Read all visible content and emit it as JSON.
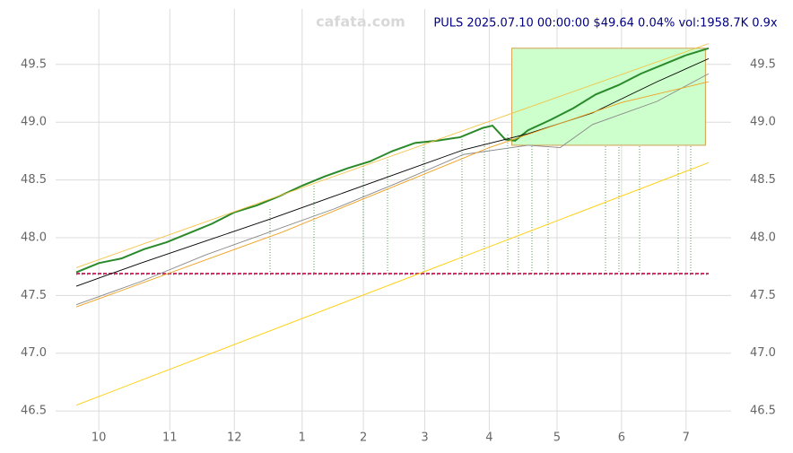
{
  "chart_data": {
    "type": "line",
    "title": "PULS 2025.07.10 00:00:00 $49.64 0.04% vol:1958.7K 0.9x",
    "watermark": "cafata.com",
    "xlim": [
      0,
      196
    ],
    "xticks": [
      {
        "value": 7,
        "label": "10"
      },
      {
        "value": 29,
        "label": "11"
      },
      {
        "value": 49,
        "label": "12"
      },
      {
        "value": 70,
        "label": "1"
      },
      {
        "value": 89,
        "label": "2"
      },
      {
        "value": 108,
        "label": "3"
      },
      {
        "value": 128,
        "label": "4"
      },
      {
        "value": 149,
        "label": "5"
      },
      {
        "value": 169,
        "label": "6"
      },
      {
        "value": 189,
        "label": "7"
      }
    ],
    "ylim": [
      46.33,
      49.98
    ],
    "yticks": [
      {
        "value": 46.5,
        "label": "46.5"
      },
      {
        "value": 47,
        "label": "47.0"
      },
      {
        "value": 47.5,
        "label": "47.5"
      },
      {
        "value": 48,
        "label": "48.0"
      },
      {
        "value": 48.5,
        "label": "48.5"
      },
      {
        "value": 49,
        "label": "49.0"
      },
      {
        "value": 49.5,
        "label": "49.5"
      }
    ],
    "grid": true,
    "box": {
      "x": [
        135,
        195
      ],
      "y": [
        48.8,
        49.64
      ],
      "color": "#ccffcc",
      "edge": "#d4a050"
    },
    "series": [
      {
        "color": "#2a8a2a",
        "x": [
          0,
          7,
          14,
          21,
          28,
          35,
          42,
          49,
          56,
          63,
          70,
          77,
          84,
          91,
          98,
          105,
          112,
          119,
          126,
          129,
          133,
          136,
          140,
          147,
          154,
          161,
          168,
          175,
          182,
          189,
          196
        ],
        "values": [
          47.7,
          47.78,
          47.82,
          47.9,
          47.96,
          48.04,
          48.12,
          48.22,
          48.28,
          48.36,
          48.45,
          48.53,
          48.6,
          48.66,
          48.75,
          48.82,
          48.84,
          48.87,
          48.95,
          48.97,
          48.85,
          48.84,
          48.93,
          49.02,
          49.12,
          49.24,
          49.32,
          49.42,
          49.5,
          49.58,
          49.64
        ]
      },
      {
        "color": "#000000",
        "x": [
          0,
          20,
          40,
          60,
          80,
          100,
          120,
          140,
          160,
          180,
          196
        ],
        "values": [
          47.58,
          47.78,
          47.97,
          48.16,
          48.36,
          48.56,
          48.76,
          48.9,
          49.08,
          49.35,
          49.55
        ]
      },
      {
        "color": "#888888",
        "x": [
          0,
          20,
          40,
          60,
          80,
          100,
          120,
          140,
          150,
          160,
          180,
          196
        ],
        "values": [
          47.42,
          47.62,
          47.85,
          48.05,
          48.25,
          48.48,
          48.72,
          48.8,
          48.78,
          48.98,
          49.18,
          49.42
        ]
      },
      {
        "color": "#f0a020",
        "x": [
          0,
          64,
          128,
          169,
          196
        ],
        "values": [
          47.4,
          48.05,
          48.78,
          49.17,
          49.35
        ]
      },
      {
        "color": "#f5c040",
        "x": [
          0,
          196
        ],
        "values": [
          47.74,
          49.68
        ]
      },
      {
        "color": "#ffcc00",
        "x": [
          0,
          196
        ],
        "values": [
          46.55,
          48.65
        ]
      }
    ]
  }
}
